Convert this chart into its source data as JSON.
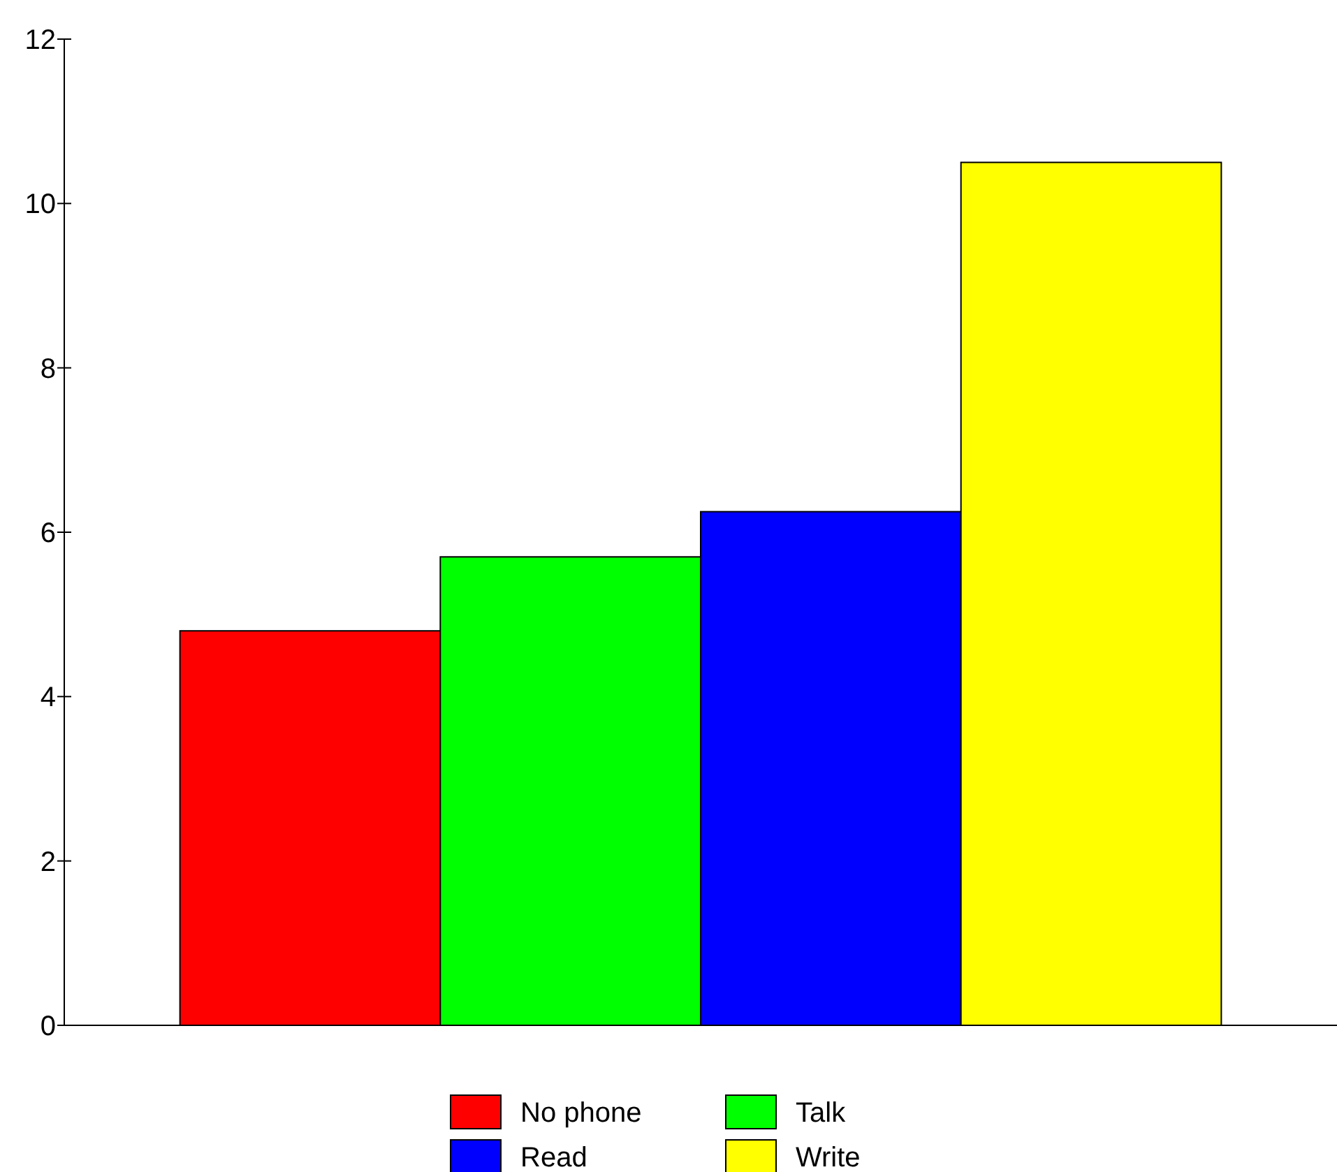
{
  "chart_data": {
    "type": "bar",
    "categories": [
      null
    ],
    "series": [
      {
        "name": "No phone",
        "color": "#ff0000",
        "values": [
          4.8
        ]
      },
      {
        "name": "Talk",
        "color": "#00ff00",
        "values": [
          5.7
        ]
      },
      {
        "name": "Read",
        "color": "#0000ff",
        "values": [
          6.25
        ]
      },
      {
        "name": "Write",
        "color": "#ffff00",
        "values": [
          10.5
        ]
      }
    ],
    "ylim": [
      0,
      12
    ],
    "yticks": [
      0,
      2,
      4,
      6,
      8,
      10,
      12
    ],
    "legend": "bottom"
  }
}
